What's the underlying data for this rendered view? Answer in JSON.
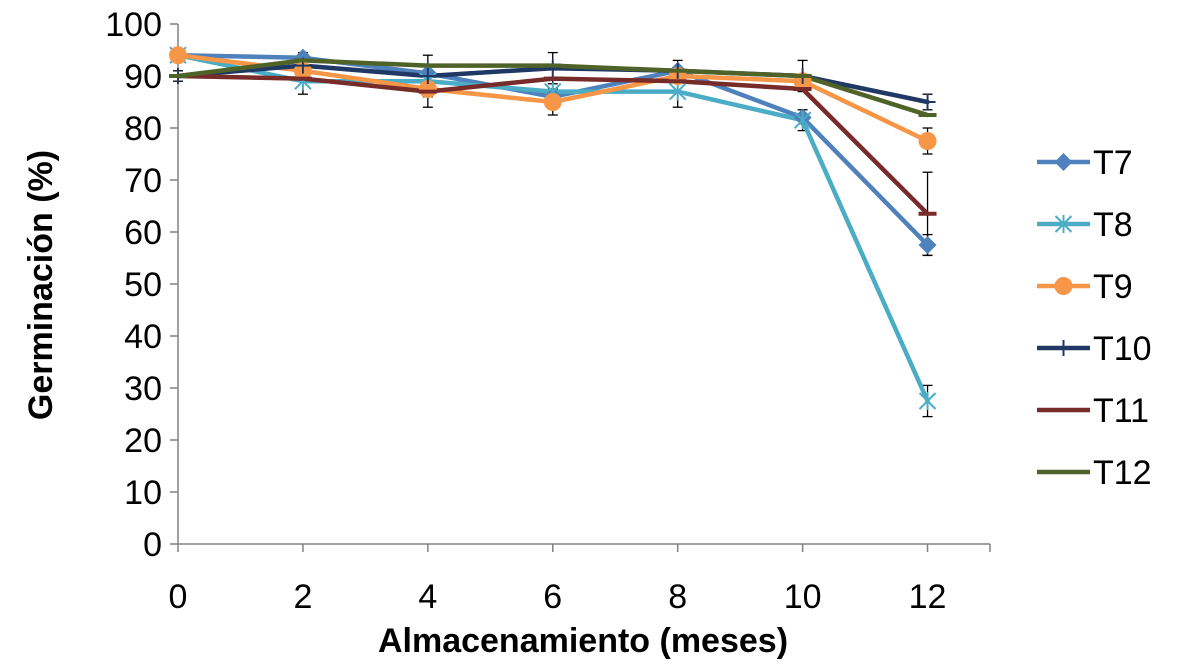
{
  "chart_data": {
    "type": "line",
    "title": "",
    "xlabel": "Almacenamiento (meses)",
    "ylabel": "Germinación (%)",
    "x": [
      0,
      2,
      4,
      6,
      8,
      10,
      12
    ],
    "xticks": [
      "0",
      "2",
      "4",
      "6",
      "8",
      "10",
      "12"
    ],
    "yticks": [
      "0",
      "10",
      "20",
      "30",
      "40",
      "50",
      "60",
      "70",
      "80",
      "90",
      "100"
    ],
    "xlim": [
      0,
      13
    ],
    "ylim": [
      0,
      100
    ],
    "grid": false,
    "legend_position": "right",
    "series": [
      {
        "name": "T7",
        "color": "#4F81BD",
        "marker": "diamond",
        "values": [
          94,
          93.5,
          90.5,
          86,
          91,
          82,
          57.5
        ],
        "errors": [
          0,
          0,
          0,
          0,
          0,
          0,
          2
        ]
      },
      {
        "name": "T8",
        "color": "#4BACC6",
        "marker": "star",
        "values": [
          94,
          89,
          89,
          87,
          87,
          81.5,
          27.5
        ],
        "errors": [
          0,
          2.5,
          0,
          0,
          3,
          2,
          3
        ]
      },
      {
        "name": "T9",
        "color": "#F79646",
        "marker": "circle",
        "values": [
          94,
          91,
          87.5,
          85,
          90,
          89,
          77.5
        ],
        "errors": [
          0,
          0,
          0,
          2.5,
          0,
          0,
          2.5
        ]
      },
      {
        "name": "T10",
        "color": "#1F3864",
        "marker": "plus",
        "values": [
          90,
          92,
          90,
          91.5,
          91,
          90,
          85
        ],
        "errors": [
          1,
          2.5,
          4,
          3,
          2,
          3,
          1.5
        ]
      },
      {
        "name": "T11",
        "color": "#772C2A",
        "marker": "dash",
        "values": [
          90,
          89.5,
          87,
          89.5,
          89,
          87.5,
          63.5
        ],
        "errors": [
          0,
          0,
          3,
          0,
          0,
          0,
          8
        ]
      },
      {
        "name": "T12",
        "color": "#4F6228",
        "marker": "dash",
        "values": [
          90,
          93,
          92,
          92,
          91,
          90,
          82.5
        ],
        "errors": [
          0,
          0,
          0,
          0,
          0,
          0,
          0
        ]
      }
    ]
  }
}
